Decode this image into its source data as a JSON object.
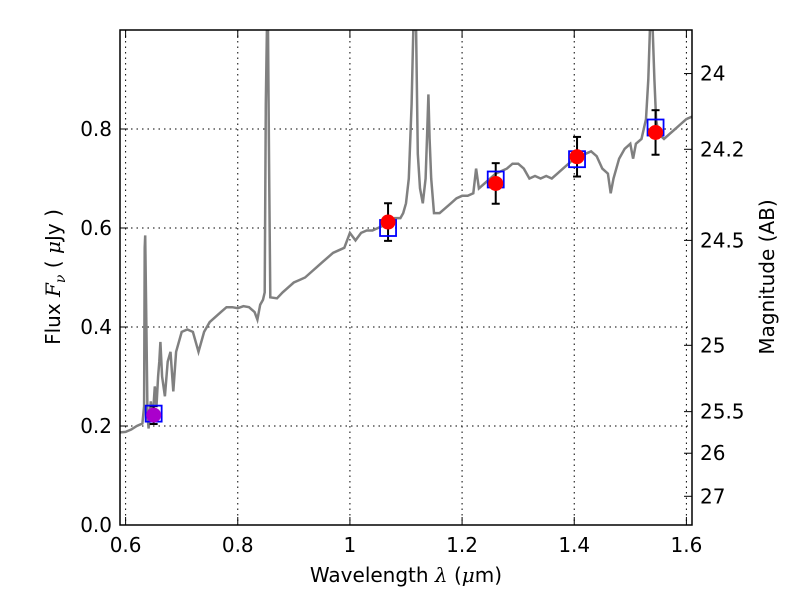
{
  "chart_data": {
    "type": "scatter",
    "xlabel": {
      "prefix": "Wavelength  ",
      "symbol": "λ",
      "mid": " (",
      "unit_sym": "μ",
      "suffix": "m)"
    },
    "ylabel": {
      "prefix": "Flux  ",
      "symbol": "F",
      "sub": "ν",
      "mid": "  ( ",
      "unit_sym": "μ",
      "suffix": "Jy )"
    },
    "y2label": "Magnitude (AB)",
    "xlim": [
      0.59,
      1.61
    ],
    "ylim": [
      0.0,
      1.0
    ],
    "x_ticks": [
      0.6,
      0.8,
      1.0,
      1.2,
      1.4,
      1.6
    ],
    "x_tick_labels": [
      "0.6",
      "0.8",
      "1",
      "1.2",
      "1.4",
      "1.6"
    ],
    "y_ticks": [
      0.0,
      0.2,
      0.4,
      0.6,
      0.8
    ],
    "y_tick_labels": [
      "0.0",
      "0.2",
      "0.4",
      "0.6",
      "0.8"
    ],
    "y2_ticks": [
      {
        "label": "24",
        "flux": 0.912
      },
      {
        "label": "24.2",
        "flux": 0.759
      },
      {
        "label": "24.5",
        "flux": 0.575
      },
      {
        "label": "25",
        "flux": 0.363
      },
      {
        "label": "25.5",
        "flux": 0.229
      },
      {
        "label": "26",
        "flux": 0.145
      },
      {
        "label": "27",
        "flux": 0.058
      }
    ],
    "grid": true,
    "colors": {
      "spectrum": "#808080",
      "observed": "#ff0000",
      "model": "#0000ff",
      "first_point": "#aa00cc",
      "errorbar": "#000000"
    },
    "observed_points": [
      {
        "x": 0.65,
        "y": 0.222,
        "err": 0.018
      },
      {
        "x": 1.068,
        "y": 0.612,
        "err": 0.038
      },
      {
        "x": 1.26,
        "y": 0.69,
        "err": 0.041
      },
      {
        "x": 1.405,
        "y": 0.744,
        "err": 0.04
      },
      {
        "x": 1.545,
        "y": 0.793,
        "err": 0.045
      }
    ],
    "model_points": [
      {
        "x": 0.65,
        "y": 0.225
      },
      {
        "x": 1.068,
        "y": 0.6
      },
      {
        "x": 1.26,
        "y": 0.698
      },
      {
        "x": 1.405,
        "y": 0.739
      },
      {
        "x": 1.545,
        "y": 0.803
      }
    ],
    "spectrum": [
      [
        0.59,
        0.187
      ],
      [
        0.6,
        0.188
      ],
      [
        0.61,
        0.193
      ],
      [
        0.62,
        0.2
      ],
      [
        0.63,
        0.205
      ],
      [
        0.633,
        0.24
      ],
      [
        0.634,
        0.56
      ],
      [
        0.635,
        0.585
      ],
      [
        0.637,
        0.4
      ],
      [
        0.639,
        0.22
      ],
      [
        0.641,
        0.195
      ],
      [
        0.645,
        0.25
      ],
      [
        0.648,
        0.21
      ],
      [
        0.652,
        0.28
      ],
      [
        0.655,
        0.24
      ],
      [
        0.658,
        0.3
      ],
      [
        0.66,
        0.33
      ],
      [
        0.662,
        0.37
      ],
      [
        0.665,
        0.3
      ],
      [
        0.67,
        0.26
      ],
      [
        0.675,
        0.33
      ],
      [
        0.68,
        0.35
      ],
      [
        0.685,
        0.27
      ],
      [
        0.69,
        0.35
      ],
      [
        0.7,
        0.39
      ],
      [
        0.71,
        0.395
      ],
      [
        0.72,
        0.39
      ],
      [
        0.73,
        0.35
      ],
      [
        0.74,
        0.39
      ],
      [
        0.75,
        0.41
      ],
      [
        0.76,
        0.42
      ],
      [
        0.77,
        0.43
      ],
      [
        0.78,
        0.44
      ],
      [
        0.79,
        0.44
      ],
      [
        0.8,
        0.438
      ],
      [
        0.81,
        0.442
      ],
      [
        0.82,
        0.44
      ],
      [
        0.83,
        0.43
      ],
      [
        0.835,
        0.415
      ],
      [
        0.84,
        0.445
      ],
      [
        0.845,
        0.455
      ],
      [
        0.848,
        0.47
      ],
      [
        0.85,
        0.85
      ],
      [
        0.852,
        1.0
      ],
      [
        0.854,
        1.0
      ],
      [
        0.856,
        0.7
      ],
      [
        0.858,
        0.46
      ],
      [
        0.87,
        0.458
      ],
      [
        0.88,
        0.47
      ],
      [
        0.89,
        0.48
      ],
      [
        0.9,
        0.49
      ],
      [
        0.91,
        0.495
      ],
      [
        0.92,
        0.5
      ],
      [
        0.93,
        0.51
      ],
      [
        0.94,
        0.52
      ],
      [
        0.95,
        0.53
      ],
      [
        0.96,
        0.54
      ],
      [
        0.97,
        0.55
      ],
      [
        0.98,
        0.555
      ],
      [
        0.99,
        0.56
      ],
      [
        1.0,
        0.59
      ],
      [
        1.01,
        0.575
      ],
      [
        1.02,
        0.59
      ],
      [
        1.03,
        0.595
      ],
      [
        1.04,
        0.595
      ],
      [
        1.05,
        0.6
      ],
      [
        1.06,
        0.605
      ],
      [
        1.07,
        0.61
      ],
      [
        1.08,
        0.62
      ],
      [
        1.09,
        0.62
      ],
      [
        1.095,
        0.63
      ],
      [
        1.1,
        0.65
      ],
      [
        1.105,
        0.7
      ],
      [
        1.11,
        0.85
      ],
      [
        1.113,
        1.0
      ],
      [
        1.118,
        1.0
      ],
      [
        1.121,
        0.75
      ],
      [
        1.125,
        0.68
      ],
      [
        1.13,
        0.65
      ],
      [
        1.135,
        0.7
      ],
      [
        1.138,
        0.8
      ],
      [
        1.14,
        0.87
      ],
      [
        1.142,
        0.78
      ],
      [
        1.145,
        0.7
      ],
      [
        1.15,
        0.63
      ],
      [
        1.16,
        0.63
      ],
      [
        1.17,
        0.64
      ],
      [
        1.18,
        0.65
      ],
      [
        1.19,
        0.66
      ],
      [
        1.2,
        0.665
      ],
      [
        1.21,
        0.665
      ],
      [
        1.22,
        0.67
      ],
      [
        1.225,
        0.72
      ],
      [
        1.23,
        0.68
      ],
      [
        1.24,
        0.69
      ],
      [
        1.25,
        0.7
      ],
      [
        1.26,
        0.71
      ],
      [
        1.27,
        0.715
      ],
      [
        1.28,
        0.72
      ],
      [
        1.29,
        0.73
      ],
      [
        1.3,
        0.73
      ],
      [
        1.31,
        0.72
      ],
      [
        1.32,
        0.7
      ],
      [
        1.33,
        0.705
      ],
      [
        1.34,
        0.7
      ],
      [
        1.35,
        0.705
      ],
      [
        1.36,
        0.7
      ],
      [
        1.37,
        0.71
      ],
      [
        1.38,
        0.72
      ],
      [
        1.39,
        0.73
      ],
      [
        1.4,
        0.74
      ],
      [
        1.41,
        0.745
      ],
      [
        1.42,
        0.75
      ],
      [
        1.43,
        0.755
      ],
      [
        1.44,
        0.745
      ],
      [
        1.45,
        0.72
      ],
      [
        1.46,
        0.71
      ],
      [
        1.465,
        0.67
      ],
      [
        1.47,
        0.7
      ],
      [
        1.48,
        0.74
      ],
      [
        1.49,
        0.76
      ],
      [
        1.5,
        0.77
      ],
      [
        1.505,
        0.74
      ],
      [
        1.51,
        0.77
      ],
      [
        1.52,
        0.78
      ],
      [
        1.528,
        0.82
      ],
      [
        1.532,
        0.9
      ],
      [
        1.535,
        1.0
      ],
      [
        1.54,
        1.0
      ],
      [
        1.543,
        0.9
      ],
      [
        1.546,
        0.82
      ],
      [
        1.55,
        0.79
      ],
      [
        1.56,
        0.78
      ],
      [
        1.57,
        0.79
      ],
      [
        1.58,
        0.8
      ],
      [
        1.59,
        0.81
      ],
      [
        1.6,
        0.82
      ],
      [
        1.61,
        0.825
      ]
    ]
  }
}
